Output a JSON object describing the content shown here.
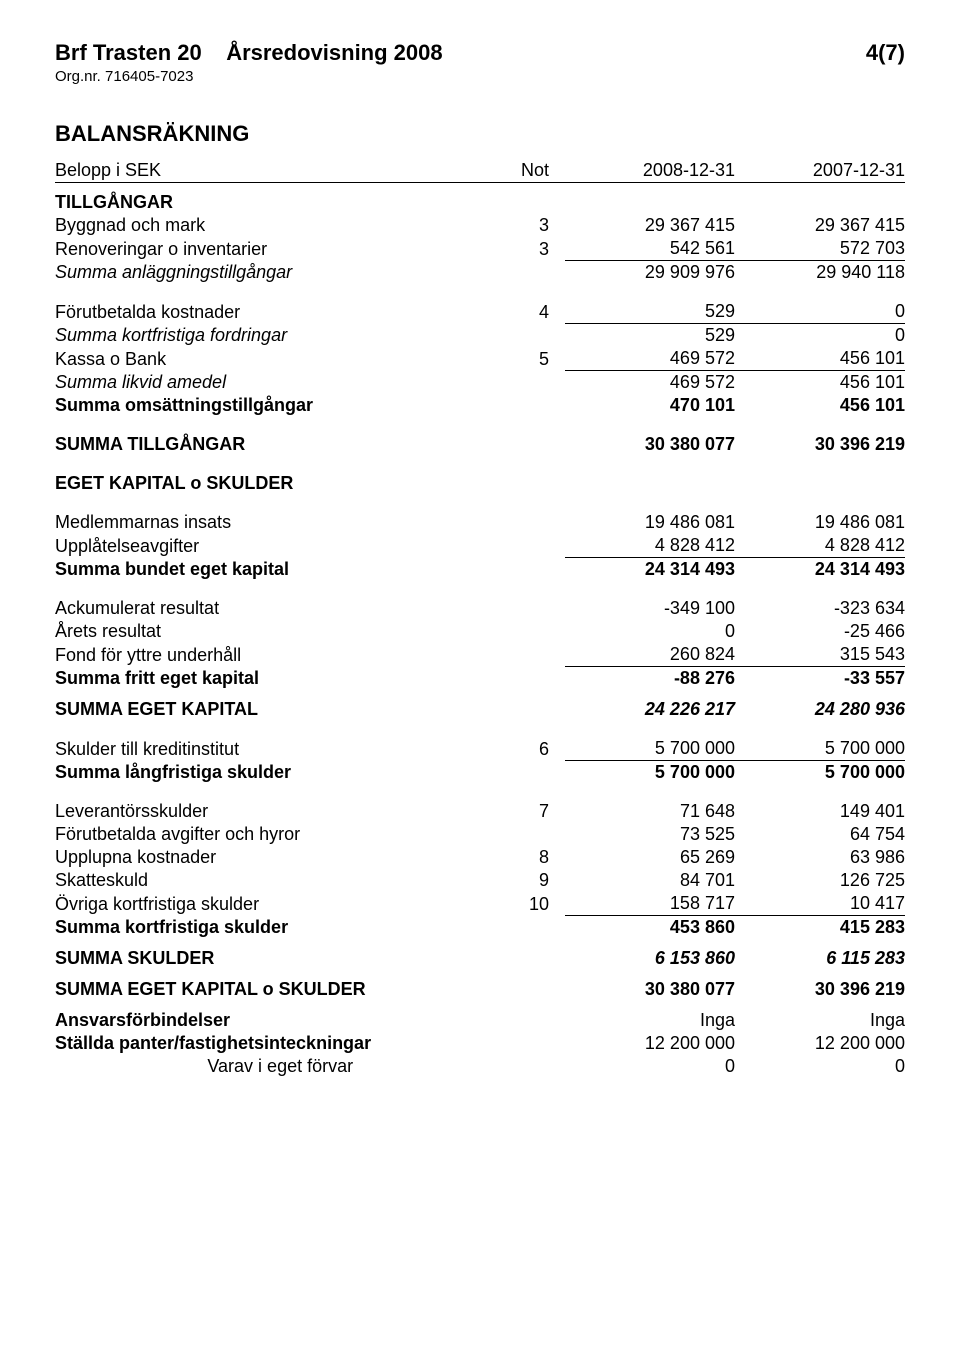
{
  "header": {
    "left": "Brf Trasten 20",
    "mid": "Årsredovisning 2008",
    "right": "4(7)",
    "orgnr": "Org.nr. 716405-7023"
  },
  "title": "BALANSRÄKNING",
  "cols": {
    "belopp": "Belopp i SEK",
    "not": "Not",
    "y1": "2008-12-31",
    "y2": "2007-12-31"
  },
  "sec": {
    "tillgangar": "TILLGÅNGAR",
    "eget_skulder": "EGET KAPITAL o SKULDER"
  },
  "r": {
    "byggnad": {
      "l": "Byggnad och mark",
      "n": "3",
      "a": "29 367 415",
      "b": "29 367 415"
    },
    "renov": {
      "l": "Renoveringar o inventarier",
      "n": "3",
      "a": "542 561",
      "b": "572 703"
    },
    "sum_anl": {
      "l": "Summa anläggningstillgångar",
      "a": "29 909 976",
      "b": "29 940 118"
    },
    "forut_kost": {
      "l": "Förutbetalda kostnader",
      "n": "4",
      "a": "529",
      "b": "0"
    },
    "sum_kort_ford": {
      "l": "Summa kortfristiga fordringar",
      "a": "529",
      "b": "0"
    },
    "kassa": {
      "l": "Kassa o Bank",
      "n": "5",
      "a": "469 572",
      "b": "456 101"
    },
    "sum_likvid": {
      "l": "Summa likvid amedel",
      "a": "469 572",
      "b": "456 101"
    },
    "sum_oms": {
      "l": "Summa omsättningstillgångar",
      "a": "470 101",
      "b": "456 101"
    },
    "sum_till": {
      "l": "SUMMA TILLGÅNGAR",
      "a": "30 380 077",
      "b": "30 396 219"
    },
    "medlem": {
      "l": "Medlemmarnas insats",
      "a": "19 486 081",
      "b": "19 486 081"
    },
    "upplat": {
      "l": "Upplåtelseavgifter",
      "a": "4 828 412",
      "b": "4 828 412"
    },
    "sum_bundet": {
      "l": "Summa bundet eget kapital",
      "a": "24 314 493",
      "b": "24 314 493"
    },
    "ackum": {
      "l": "Ackumulerat resultat",
      "a": "-349 100",
      "b": "-323 634"
    },
    "arets": {
      "l": "Årets resultat",
      "a": "0",
      "b": "-25 466"
    },
    "fond": {
      "l": "Fond för yttre underhåll",
      "a": "260 824",
      "b": "315 543"
    },
    "sum_fritt": {
      "l": "Summa fritt eget kapital",
      "a": "-88 276",
      "b": "-33 557"
    },
    "sum_eget": {
      "l": "SUMMA EGET KAPITAL",
      "a": "24 226 217",
      "b": "24 280 936"
    },
    "skuld_kredit": {
      "l": "Skulder till kreditinstitut",
      "n": "6",
      "a": "5 700 000",
      "b": "5 700 000"
    },
    "sum_lang": {
      "l": "Summa långfristiga skulder",
      "a": "5 700 000",
      "b": "5 700 000"
    },
    "lever": {
      "l": "Leverantörsskulder",
      "n": "7",
      "a": "71 648",
      "b": "149 401"
    },
    "forut_avg": {
      "l": "Förutbetalda avgifter och hyror",
      "a": "73 525",
      "b": "64 754"
    },
    "uppl": {
      "l": "Upplupna kostnader",
      "n": "8",
      "a": "65 269",
      "b": "63 986"
    },
    "skatt": {
      "l": "Skatteskuld",
      "n": "9",
      "a": "84 701",
      "b": "126 725"
    },
    "ovrig": {
      "l": "Övriga kortfristiga skulder",
      "n": "10",
      "a": "158 717",
      "b": "10 417"
    },
    "sum_kort_sk": {
      "l": "Summa kortfristiga skulder",
      "a": "453 860",
      "b": "415 283"
    },
    "sum_skulder": {
      "l": "SUMMA SKULDER",
      "a": "6 153 860",
      "b": "6 115 283"
    },
    "sum_eg_sk": {
      "l": "SUMMA EGET KAPITAL o SKULDER",
      "a": "30 380 077",
      "b": "30 396 219"
    },
    "ansvar": {
      "l": "Ansvarsförbindelser",
      "a": "Inga",
      "b": "Inga"
    },
    "panter": {
      "l": "Ställda panter/fastighetsinteckningar",
      "a": "12 200 000",
      "b": "12 200 000"
    },
    "varav": {
      "l": "Varav i eget förvar",
      "a": "0",
      "b": "0"
    }
  }
}
